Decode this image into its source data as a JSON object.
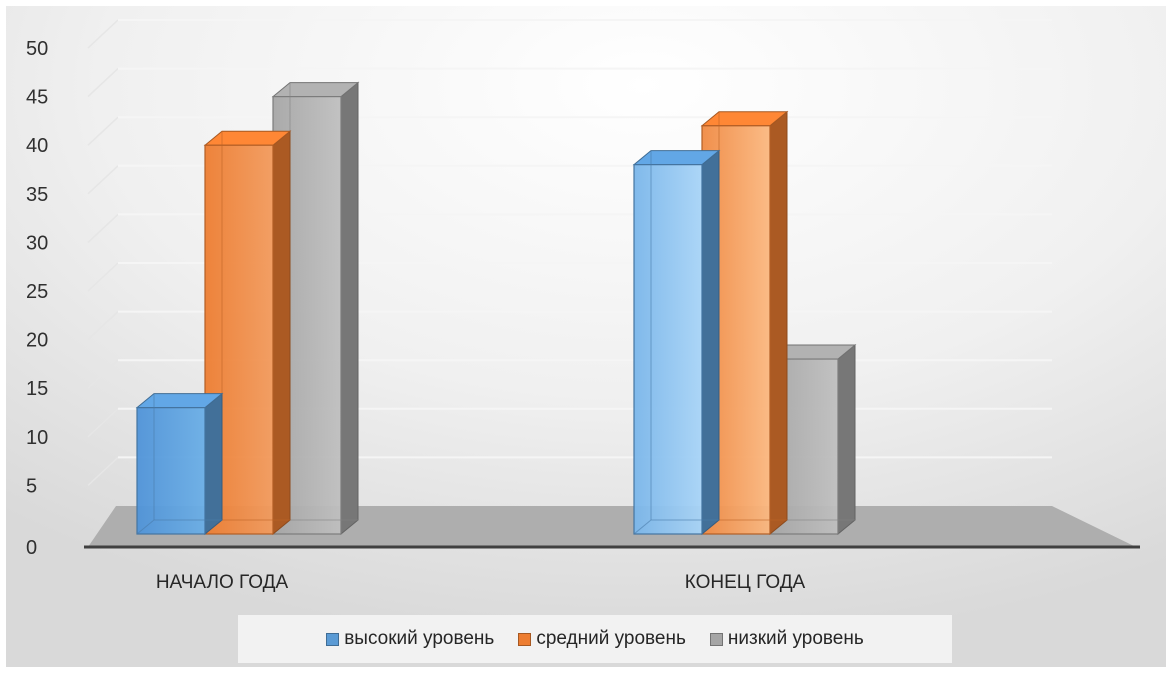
{
  "chart_data": {
    "type": "bar",
    "categories": [
      "НАЧАЛО ГОДА",
      "КОНЕЦ ГОДА"
    ],
    "series": [
      {
        "name": "высокий уровень",
        "values": [
          13,
          38
        ],
        "color": "#5b9bd5"
      },
      {
        "name": "средний уровень",
        "values": [
          40,
          42
        ],
        "color": "#ed7d31"
      },
      {
        "name": "низкий уровень",
        "values": [
          45,
          18
        ],
        "color": "#a5a5a5"
      }
    ],
    "yticks": [
      "0",
      "5",
      "10",
      "15",
      "20",
      "25",
      "30",
      "35",
      "40",
      "45",
      "50"
    ],
    "ylim": [
      0,
      50
    ],
    "grid": true,
    "legend_position": "bottom",
    "title": "",
    "xlabel": "",
    "ylabel": ""
  }
}
